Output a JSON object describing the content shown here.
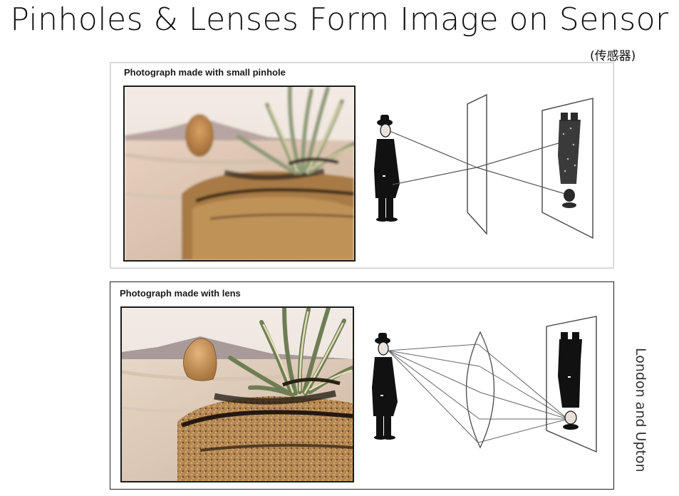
{
  "slide": {
    "title": "Pinholes & Lenses Form Image on Sensor",
    "subtitle": "(传感器)",
    "credit": "London and Upton"
  },
  "panels": {
    "pinhole": {
      "caption": "Photograph made with small pinhole"
    },
    "lens": {
      "caption": "Photograph made with lens"
    }
  }
}
